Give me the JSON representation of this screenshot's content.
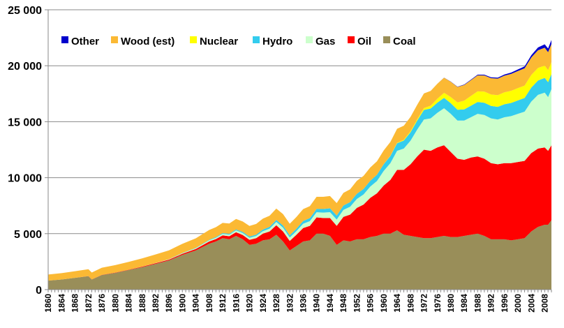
{
  "chart_data": {
    "type": "area",
    "stacked": true,
    "title": "",
    "xlabel": "",
    "ylabel": "",
    "xlim": [
      1860,
      2010
    ],
    "ylim": [
      0,
      25000
    ],
    "y_ticks": [
      0,
      5000,
      10000,
      15000,
      20000,
      25000
    ],
    "y_tick_labels": [
      "0",
      "5 000",
      "10 000",
      "15 000",
      "20 000",
      "25 000"
    ],
    "x_tick_labels": [
      "1860",
      "1864",
      "1868",
      "1872",
      "1876",
      "1880",
      "1884",
      "1888",
      "1892",
      "1896",
      "1900",
      "1904",
      "1908",
      "1912",
      "1916",
      "1920",
      "1924",
      "1928",
      "1932",
      "1936",
      "1940",
      "1944",
      "1948",
      "1952",
      "1956",
      "1960",
      "1964",
      "1968",
      "1972",
      "1976",
      "1980",
      "1984",
      "1988",
      "1992",
      "1996",
      "2000",
      "2004",
      "2008"
    ],
    "grid": {
      "horizontal": true,
      "vertical": false
    },
    "legend_placement": "top-left, horizontal",
    "x": [
      1860,
      1864,
      1868,
      1872,
      1873,
      1876,
      1880,
      1884,
      1888,
      1892,
      1896,
      1900,
      1904,
      1908,
      1910,
      1912,
      1914,
      1916,
      1918,
      1920,
      1922,
      1924,
      1926,
      1928,
      1930,
      1932,
      1934,
      1936,
      1938,
      1940,
      1942,
      1944,
      1946,
      1948,
      1950,
      1952,
      1954,
      1956,
      1958,
      1960,
      1962,
      1964,
      1966,
      1968,
      1970,
      1972,
      1974,
      1976,
      1978,
      1980,
      1982,
      1984,
      1986,
      1988,
      1990,
      1992,
      1994,
      1996,
      1998,
      2000,
      2002,
      2004,
      2006,
      2008,
      2009,
      2010
    ],
    "series": [
      {
        "name": "Coal",
        "color": "#998e59",
        "values": [
          800,
          900,
          1050,
          1200,
          900,
          1300,
          1500,
          1750,
          2000,
          2300,
          2600,
          3100,
          3500,
          4100,
          4300,
          4600,
          4500,
          4800,
          4500,
          4000,
          4100,
          4400,
          4500,
          4900,
          4300,
          3500,
          3900,
          4300,
          4400,
          5000,
          5000,
          4800,
          4000,
          4400,
          4300,
          4500,
          4500,
          4700,
          4800,
          5000,
          5000,
          5300,
          4900,
          4800,
          4700,
          4600,
          4600,
          4700,
          4800,
          4700,
          4700,
          4800,
          4900,
          5000,
          4800,
          4500,
          4500,
          4500,
          4400,
          4500,
          4600,
          5200,
          5600,
          5800,
          5800,
          6200
        ]
      },
      {
        "name": "Oil",
        "color": "#ff0000",
        "values": [
          0,
          0,
          5,
          10,
          10,
          15,
          20,
          30,
          50,
          60,
          80,
          100,
          130,
          200,
          220,
          250,
          270,
          330,
          380,
          450,
          500,
          600,
          700,
          850,
          900,
          850,
          1000,
          1200,
          1300,
          1450,
          1400,
          1600,
          1700,
          2100,
          2400,
          2800,
          3100,
          3500,
          3800,
          4300,
          4800,
          5400,
          5800,
          6400,
          7200,
          7900,
          7800,
          8000,
          8100,
          7600,
          7000,
          6800,
          6900,
          6900,
          6900,
          6800,
          6700,
          6800,
          6900,
          6900,
          6900,
          7000,
          7000,
          6900,
          6600,
          6700
        ]
      },
      {
        "name": "Gas",
        "color": "#ccffcc",
        "values": [
          0,
          0,
          0,
          0,
          0,
          0,
          0,
          0,
          10,
          20,
          30,
          50,
          70,
          100,
          110,
          130,
          140,
          160,
          170,
          180,
          190,
          220,
          250,
          300,
          330,
          300,
          330,
          380,
          420,
          460,
          480,
          520,
          560,
          620,
          700,
          800,
          900,
          1000,
          1100,
          1300,
          1500,
          1700,
          1900,
          2100,
          2400,
          2700,
          2900,
          3100,
          3300,
          3400,
          3400,
          3500,
          3600,
          3800,
          3900,
          4000,
          4000,
          4100,
          4200,
          4300,
          4400,
          4600,
          4800,
          4900,
          4800,
          5000
        ]
      },
      {
        "name": "Hydro",
        "color": "#33ccee",
        "values": [
          0,
          0,
          0,
          0,
          0,
          0,
          0,
          0,
          0,
          0,
          10,
          20,
          30,
          50,
          60,
          70,
          80,
          90,
          100,
          110,
          120,
          140,
          160,
          180,
          200,
          200,
          220,
          250,
          270,
          300,
          320,
          340,
          360,
          390,
          420,
          460,
          490,
          520,
          560,
          600,
          640,
          680,
          720,
          760,
          800,
          850,
          880,
          900,
          930,
          950,
          970,
          1000,
          1030,
          1060,
          1090,
          1110,
          1130,
          1160,
          1180,
          1200,
          1220,
          1250,
          1280,
          1310,
          1330,
          1350
        ]
      },
      {
        "name": "Nuclear",
        "color": "#ffff00",
        "values": [
          0,
          0,
          0,
          0,
          0,
          0,
          0,
          0,
          0,
          0,
          0,
          0,
          0,
          0,
          0,
          0,
          0,
          0,
          0,
          0,
          0,
          0,
          0,
          0,
          0,
          0,
          0,
          0,
          0,
          0,
          0,
          0,
          0,
          0,
          0,
          0,
          0,
          0,
          5,
          10,
          20,
          40,
          60,
          90,
          120,
          170,
          250,
          350,
          450,
          550,
          650,
          780,
          870,
          950,
          1000,
          1020,
          1040,
          1070,
          1080,
          1100,
          1110,
          1130,
          1120,
          1100,
          1080,
          1070
        ]
      },
      {
        "name": "Wood (est)",
        "color": "#fbb934",
        "values": [
          550,
          570,
          590,
          610,
          620,
          640,
          670,
          700,
          730,
          760,
          790,
          820,
          850,
          880,
          890,
          910,
          920,
          930,
          940,
          950,
          960,
          980,
          990,
          1010,
          1020,
          1030,
          1040,
          1060,
          1070,
          1080,
          1090,
          1100,
          1110,
          1130,
          1140,
          1160,
          1170,
          1190,
          1200,
          1220,
          1230,
          1250,
          1260,
          1280,
          1290,
          1310,
          1320,
          1340,
          1350,
          1370,
          1380,
          1400,
          1410,
          1430,
          1440,
          1460,
          1480,
          1490,
          1510,
          1530,
          1540,
          1560,
          1580,
          1600,
          1600,
          1620
        ]
      },
      {
        "name": "Other",
        "color": "#0000cc",
        "values": [
          0,
          0,
          0,
          0,
          0,
          0,
          0,
          0,
          0,
          0,
          0,
          0,
          0,
          0,
          0,
          0,
          0,
          0,
          0,
          0,
          0,
          0,
          0,
          0,
          0,
          0,
          0,
          0,
          0,
          0,
          0,
          0,
          0,
          0,
          0,
          0,
          0,
          0,
          0,
          0,
          0,
          0,
          0,
          0,
          0,
          0,
          0,
          0,
          10,
          20,
          30,
          40,
          50,
          60,
          70,
          80,
          90,
          100,
          120,
          140,
          170,
          200,
          250,
          300,
          330,
          360
        ]
      }
    ],
    "legend_order": [
      "Other",
      "Wood (est)",
      "Nuclear",
      "Hydro",
      "Gas",
      "Oil",
      "Coal"
    ]
  }
}
